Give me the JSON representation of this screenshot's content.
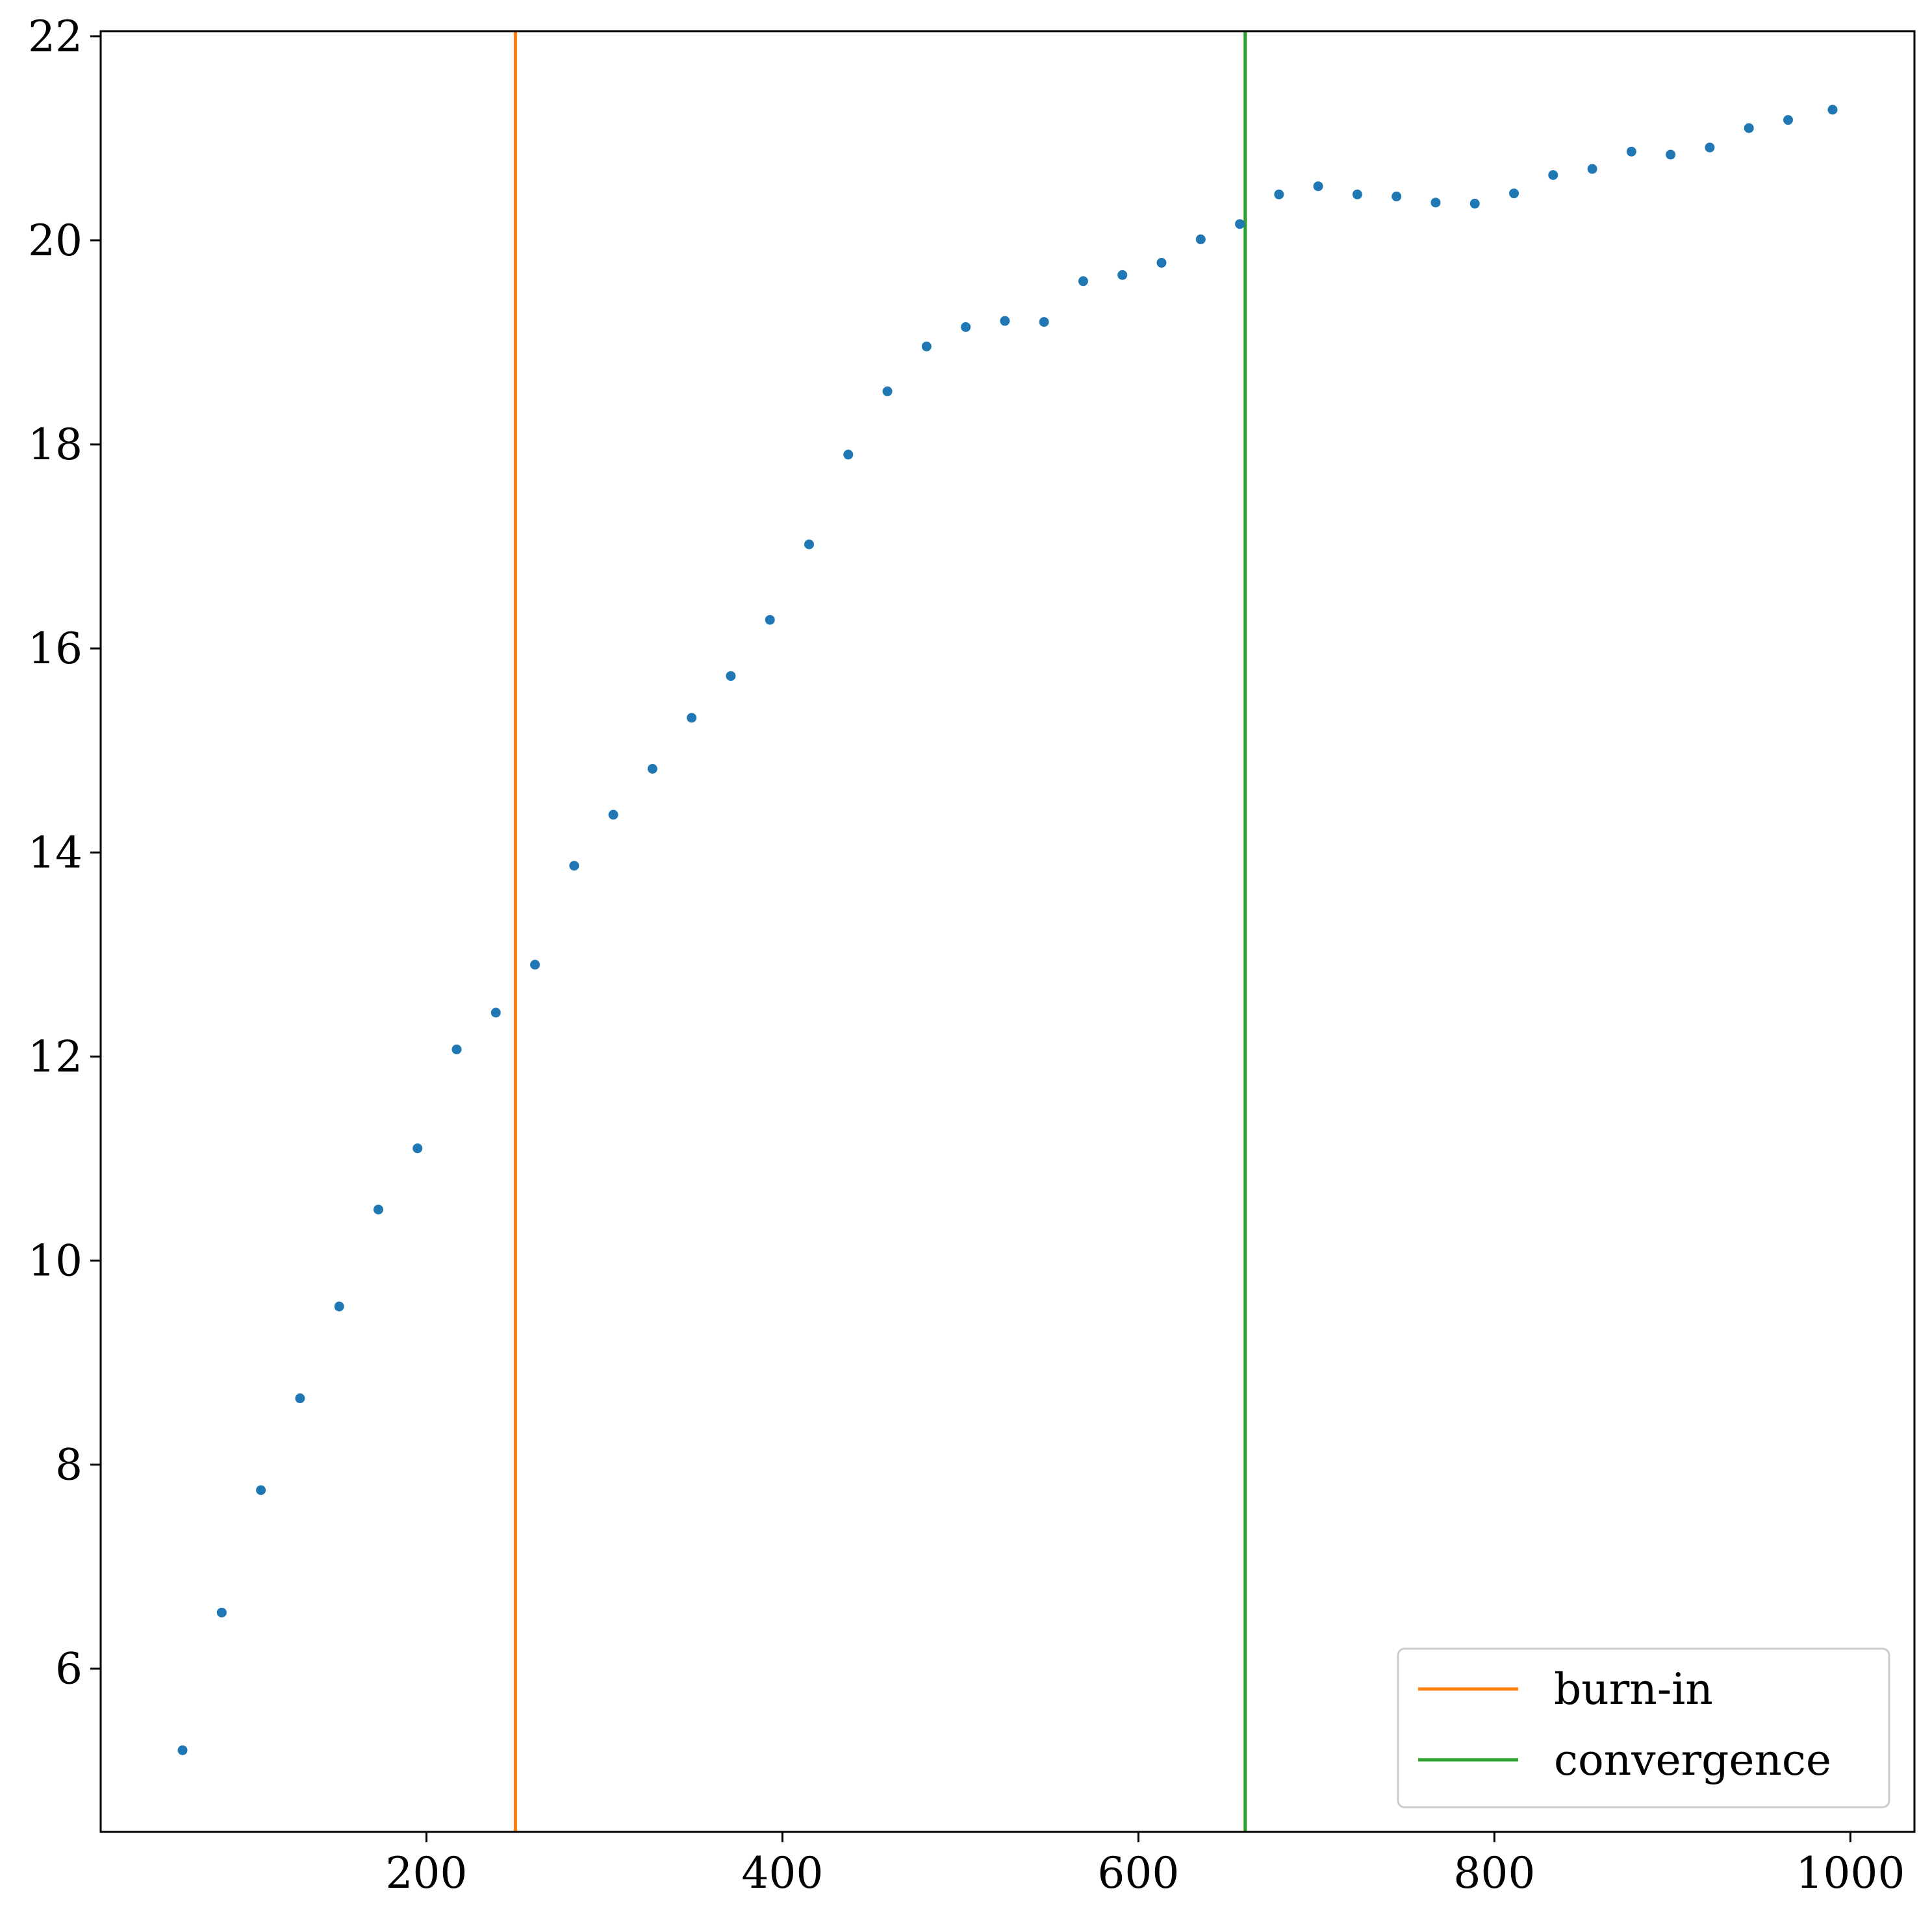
{
  "chart_data": {
    "type": "scatter",
    "title": "",
    "xlabel": "",
    "ylabel": "",
    "xlim": [
      17,
      1036
    ],
    "ylim": [
      4.4,
      22.05
    ],
    "xticks": [
      200,
      400,
      600,
      800,
      1000
    ],
    "yticks": [
      6,
      8,
      10,
      12,
      14,
      16,
      18,
      20,
      22
    ],
    "grid": false,
    "legend_position": "lower-right",
    "point_color": "#1f77b4",
    "series": [
      {
        "x": [
          63,
          85,
          107,
          129,
          151,
          173,
          195,
          217,
          239,
          261,
          283,
          305,
          327,
          349,
          371,
          393,
          415,
          437,
          459,
          481,
          503,
          525,
          547,
          569,
          591,
          613,
          635,
          657,
          679,
          701,
          723,
          745,
          767,
          789,
          811,
          833,
          855,
          877,
          899,
          921,
          943,
          965,
          990
        ],
        "y": [
          5.2,
          6.55,
          7.75,
          8.65,
          9.55,
          10.5,
          11.1,
          12.07,
          12.43,
          12.9,
          13.87,
          14.37,
          14.82,
          15.32,
          15.73,
          16.28,
          17.02,
          17.9,
          18.52,
          18.96,
          19.15,
          19.21,
          19.2,
          19.6,
          19.66,
          19.78,
          20.01,
          20.16,
          20.45,
          20.53,
          20.45,
          20.43,
          20.37,
          20.36,
          20.46,
          20.64,
          20.7,
          20.87,
          20.84,
          20.91,
          21.1,
          21.18,
          21.28
        ]
      }
    ],
    "vlines": [
      {
        "name": "burn-in",
        "x": 250,
        "color": "#ff7f0e"
      },
      {
        "name": "convergence",
        "x": 660,
        "color": "#2ca02c"
      }
    ]
  }
}
